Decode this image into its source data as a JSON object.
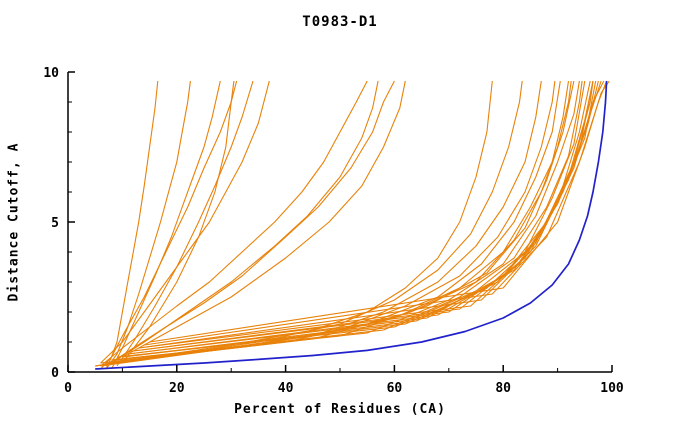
{
  "chart_data": {
    "type": "line",
    "title": "T0983-D1",
    "xlabel": "Percent of Residues (CA)",
    "ylabel": "Distance Cutoff, A",
    "xlim": [
      0,
      100
    ],
    "ylim": [
      0,
      10
    ],
    "grid": false,
    "legend": "none",
    "x_ticks": {
      "major": [
        0,
        20,
        40,
        60,
        80,
        100
      ],
      "minor": [
        10,
        30,
        50,
        70,
        90
      ]
    },
    "y_ticks": {
      "major": [
        0,
        5,
        10
      ],
      "minor": [
        1,
        2,
        3,
        4,
        6,
        7,
        8,
        9
      ]
    },
    "colors": {
      "model": "#E8820A",
      "highlight": "#2222CC",
      "axis": "#000000"
    },
    "series": [
      {
        "color": "orange",
        "points": [
          [
            7,
            0.1
          ],
          [
            8,
            0.5
          ],
          [
            9,
            1
          ],
          [
            10,
            2
          ],
          [
            11,
            3
          ],
          [
            12,
            4
          ],
          [
            13,
            5
          ],
          [
            14,
            6.2
          ],
          [
            15,
            7.5
          ],
          [
            16,
            8.8
          ],
          [
            16.5,
            9.7
          ]
        ]
      },
      {
        "color": "orange",
        "points": [
          [
            7,
            0.1
          ],
          [
            9,
            0.6
          ],
          [
            11,
            1.5
          ],
          [
            13,
            2.6
          ],
          [
            15,
            3.8
          ],
          [
            17,
            5
          ],
          [
            18.5,
            6
          ],
          [
            20,
            7
          ],
          [
            21,
            8
          ],
          [
            22,
            9
          ],
          [
            22.5,
            9.7
          ]
        ]
      },
      {
        "color": "orange",
        "points": [
          [
            8,
            0.1
          ],
          [
            10,
            0.8
          ],
          [
            13,
            2
          ],
          [
            16,
            3.2
          ],
          [
            19,
            4.5
          ],
          [
            21,
            5.5
          ],
          [
            23,
            6.5
          ],
          [
            25,
            7.5
          ],
          [
            26.5,
            8.5
          ],
          [
            28,
            9.7
          ]
        ]
      },
      {
        "color": "orange",
        "points": [
          [
            6,
            0.1
          ],
          [
            8,
            0.5
          ],
          [
            10,
            1.2
          ],
          [
            14,
            2.5
          ],
          [
            18,
            4
          ],
          [
            22,
            5.5
          ],
          [
            25,
            6.8
          ],
          [
            28,
            8
          ],
          [
            30,
            9
          ],
          [
            31,
            9.7
          ]
        ]
      },
      {
        "color": "orange",
        "points": [
          [
            9,
            0.2
          ],
          [
            12,
            1
          ],
          [
            16,
            2.2
          ],
          [
            20,
            3.5
          ],
          [
            24,
            5
          ],
          [
            27,
            6.2
          ],
          [
            30,
            7.5
          ],
          [
            32,
            8.5
          ],
          [
            34,
            9.7
          ]
        ]
      },
      {
        "color": "orange",
        "points": [
          [
            10,
            0.3
          ],
          [
            15,
            1.5
          ],
          [
            20,
            3
          ],
          [
            24,
            4.5
          ],
          [
            27,
            6
          ],
          [
            29,
            7.5
          ],
          [
            30,
            9
          ],
          [
            30.5,
            9.7
          ]
        ]
      },
      {
        "color": "orange",
        "points": [
          [
            6,
            0.2
          ],
          [
            10,
            0.8
          ],
          [
            15,
            1.5
          ],
          [
            20,
            2.2
          ],
          [
            26,
            3
          ],
          [
            32,
            4
          ],
          [
            38,
            5
          ],
          [
            43,
            6
          ],
          [
            47,
            7
          ],
          [
            50,
            8
          ],
          [
            53,
            9
          ],
          [
            55,
            9.7
          ]
        ]
      },
      {
        "color": "orange",
        "points": [
          [
            7,
            0.2
          ],
          [
            12,
            0.8
          ],
          [
            18,
            1.5
          ],
          [
            25,
            2.3
          ],
          [
            32,
            3.2
          ],
          [
            40,
            4.5
          ],
          [
            46,
            5.5
          ],
          [
            52,
            6.8
          ],
          [
            56,
            8
          ],
          [
            58,
            9
          ],
          [
            60,
            9.7
          ]
        ]
      },
      {
        "color": "orange",
        "points": [
          [
            8,
            0.3
          ],
          [
            14,
            1
          ],
          [
            22,
            2
          ],
          [
            30,
            3
          ],
          [
            38,
            4.2
          ],
          [
            44,
            5.2
          ],
          [
            50,
            6.5
          ],
          [
            54,
            7.8
          ],
          [
            56,
            8.8
          ],
          [
            57,
            9.7
          ]
        ]
      },
      {
        "color": "orange",
        "points": [
          [
            10,
            0.5
          ],
          [
            20,
            1.5
          ],
          [
            30,
            2.5
          ],
          [
            40,
            3.8
          ],
          [
            48,
            5
          ],
          [
            54,
            6.2
          ],
          [
            58,
            7.5
          ],
          [
            61,
            8.8
          ],
          [
            62,
            9.7
          ]
        ]
      },
      {
        "color": "orange",
        "points": [
          [
            6,
            0.3
          ],
          [
            10,
            1
          ],
          [
            14,
            2
          ],
          [
            18,
            3
          ],
          [
            22,
            4
          ],
          [
            26,
            5
          ],
          [
            29,
            6
          ],
          [
            32,
            7
          ],
          [
            35,
            8.3
          ],
          [
            37,
            9.7
          ]
        ]
      },
      {
        "color": "orange",
        "points": [
          [
            5,
            0.2
          ],
          [
            15,
            0.5
          ],
          [
            30,
            0.9
          ],
          [
            45,
            1.4
          ],
          [
            55,
            2
          ],
          [
            62,
            2.8
          ],
          [
            68,
            3.8
          ],
          [
            72,
            5
          ],
          [
            75,
            6.5
          ],
          [
            77,
            8
          ],
          [
            78,
            9.7
          ]
        ]
      },
      {
        "color": "orange",
        "points": [
          [
            5,
            0.2
          ],
          [
            20,
            0.6
          ],
          [
            35,
            1
          ],
          [
            50,
            1.6
          ],
          [
            60,
            2.4
          ],
          [
            68,
            3.4
          ],
          [
            74,
            4.6
          ],
          [
            78,
            6
          ],
          [
            81,
            7.5
          ],
          [
            83,
            9
          ],
          [
            83.5,
            9.7
          ]
        ]
      },
      {
        "color": "orange",
        "points": [
          [
            5,
            0.2
          ],
          [
            25,
            0.7
          ],
          [
            45,
            1.2
          ],
          [
            58,
            2
          ],
          [
            68,
            3
          ],
          [
            75,
            4.2
          ],
          [
            80,
            5.5
          ],
          [
            84,
            7
          ],
          [
            86,
            8.5
          ],
          [
            87,
            9.7
          ]
        ]
      },
      {
        "color": "orange",
        "points": [
          [
            6,
            0.2
          ],
          [
            30,
            0.8
          ],
          [
            50,
            1.4
          ],
          [
            62,
            2.2
          ],
          [
            72,
            3.2
          ],
          [
            79,
            4.5
          ],
          [
            84,
            6
          ],
          [
            87,
            7.5
          ],
          [
            89,
            9
          ],
          [
            89.5,
            9.7
          ]
        ]
      },
      {
        "color": "orange",
        "points": [
          [
            6,
            0.3
          ],
          [
            35,
            0.9
          ],
          [
            55,
            1.6
          ],
          [
            68,
            2.5
          ],
          [
            76,
            3.6
          ],
          [
            82,
            5
          ],
          [
            86,
            6.5
          ],
          [
            89,
            8
          ],
          [
            90.5,
            9.7
          ]
        ]
      },
      {
        "color": "orange",
        "points": [
          [
            7,
            0.3
          ],
          [
            40,
            1
          ],
          [
            60,
            1.8
          ],
          [
            72,
            2.8
          ],
          [
            80,
            4
          ],
          [
            85,
            5.5
          ],
          [
            89,
            7
          ],
          [
            91,
            8.5
          ],
          [
            92,
            9.7
          ]
        ]
      },
      {
        "color": "orange",
        "points": [
          [
            7,
            0.3
          ],
          [
            45,
            1.1
          ],
          [
            63,
            2
          ],
          [
            75,
            3
          ],
          [
            82,
            4.4
          ],
          [
            87,
            6
          ],
          [
            90,
            7.5
          ],
          [
            92,
            9
          ],
          [
            92.5,
            9.7
          ]
        ]
      },
      {
        "color": "orange",
        "points": [
          [
            8,
            0.4
          ],
          [
            50,
            1.2
          ],
          [
            66,
            2.2
          ],
          [
            77,
            3.3
          ],
          [
            84,
            4.8
          ],
          [
            88,
            6.4
          ],
          [
            91,
            8
          ],
          [
            93,
            9.7
          ]
        ]
      },
      {
        "color": "orange",
        "points": [
          [
            8,
            0.4
          ],
          [
            55,
            1.3
          ],
          [
            70,
            2.4
          ],
          [
            80,
            3.6
          ],
          [
            86,
            5.2
          ],
          [
            90,
            7
          ],
          [
            93,
            8.6
          ],
          [
            94,
            9.7
          ]
        ]
      },
      {
        "color": "orange",
        "points": [
          [
            9,
            0.4
          ],
          [
            58,
            1.4
          ],
          [
            72,
            2.5
          ],
          [
            82,
            3.8
          ],
          [
            88,
            5.5
          ],
          [
            92,
            7.2
          ],
          [
            94,
            9
          ],
          [
            94.5,
            9.7
          ]
        ]
      },
      {
        "color": "orange",
        "points": [
          [
            9,
            0.5
          ],
          [
            60,
            1.5
          ],
          [
            75,
            2.7
          ],
          [
            84,
            4
          ],
          [
            89,
            5.8
          ],
          [
            93,
            7.6
          ],
          [
            95,
            9.7
          ]
        ]
      },
      {
        "color": "orange",
        "points": [
          [
            10,
            0.5
          ],
          [
            62,
            1.6
          ],
          [
            77,
            2.8
          ],
          [
            86,
            4.3
          ],
          [
            91,
            6.2
          ],
          [
            94,
            8
          ],
          [
            96,
            9.7
          ]
        ]
      },
      {
        "color": "orange",
        "points": [
          [
            10,
            0.5
          ],
          [
            64,
            1.7
          ],
          [
            79,
            3
          ],
          [
            87,
            4.6
          ],
          [
            92,
            6.5
          ],
          [
            95,
            8.4
          ],
          [
            96.5,
            9.7
          ]
        ]
      },
      {
        "color": "orange",
        "points": [
          [
            11,
            0.6
          ],
          [
            66,
            1.8
          ],
          [
            80,
            3.2
          ],
          [
            88,
            5
          ],
          [
            93,
            7
          ],
          [
            96,
            9
          ],
          [
            96.5,
            9.7
          ]
        ]
      },
      {
        "color": "orange",
        "points": [
          [
            11,
            0.6
          ],
          [
            68,
            1.9
          ],
          [
            82,
            3.4
          ],
          [
            89,
            5.3
          ],
          [
            94,
            7.4
          ],
          [
            96.5,
            9.7
          ]
        ]
      },
      {
        "color": "orange",
        "points": [
          [
            12,
            0.7
          ],
          [
            70,
            2
          ],
          [
            83,
            3.6
          ],
          [
            90,
            5.6
          ],
          [
            95,
            7.8
          ],
          [
            97,
            9.7
          ]
        ]
      },
      {
        "color": "orange",
        "points": [
          [
            12,
            0.7
          ],
          [
            72,
            2.1
          ],
          [
            84,
            3.8
          ],
          [
            91,
            6
          ],
          [
            95.5,
            8.2
          ],
          [
            97.5,
            9.7
          ]
        ]
      },
      {
        "color": "orange",
        "points": [
          [
            13,
            0.8
          ],
          [
            74,
            2.2
          ],
          [
            85,
            4
          ],
          [
            92,
            6.4
          ],
          [
            96,
            8.6
          ],
          [
            98,
            9.7
          ]
        ]
      },
      {
        "color": "orange",
        "points": [
          [
            13,
            0.8
          ],
          [
            76,
            2.4
          ],
          [
            86,
            4.2
          ],
          [
            93,
            6.8
          ],
          [
            96.5,
            9
          ],
          [
            98.5,
            9.7
          ]
        ]
      },
      {
        "color": "orange",
        "points": [
          [
            14,
            0.9
          ],
          [
            78,
            2.6
          ],
          [
            88,
            4.5
          ],
          [
            94,
            7
          ],
          [
            97.5,
            9
          ],
          [
            99,
            9.7
          ]
        ]
      },
      {
        "color": "orange",
        "points": [
          [
            15,
            1
          ],
          [
            80,
            2.8
          ],
          [
            90,
            5
          ],
          [
            95,
            7.5
          ],
          [
            98,
            9.3
          ],
          [
            99.5,
            9.7
          ]
        ]
      },
      {
        "color": "blue",
        "points": [
          [
            5,
            0.1
          ],
          [
            15,
            0.2
          ],
          [
            25,
            0.3
          ],
          [
            35,
            0.42
          ],
          [
            45,
            0.55
          ],
          [
            55,
            0.72
          ],
          [
            65,
            1
          ],
          [
            73,
            1.35
          ],
          [
            80,
            1.8
          ],
          [
            85,
            2.3
          ],
          [
            89,
            2.9
          ],
          [
            92,
            3.6
          ],
          [
            94,
            4.4
          ],
          [
            95.5,
            5.2
          ],
          [
            96.5,
            6
          ],
          [
            97.5,
            7
          ],
          [
            98.3,
            8
          ],
          [
            98.8,
            9
          ],
          [
            99,
            9.7
          ]
        ]
      }
    ]
  }
}
